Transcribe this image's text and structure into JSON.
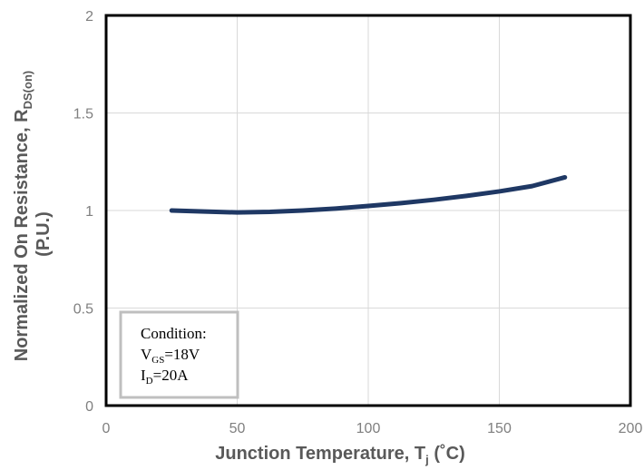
{
  "chart_data": {
    "type": "line",
    "xlabel": {
      "main": "Junction Temperature, T",
      "sub": "j",
      "unit": " (˚C)"
    },
    "ylabel": {
      "main": "Normalized On Resistance, R",
      "sub": "DS(on)",
      "line2": "(P.U.)"
    },
    "xlim": [
      0,
      200
    ],
    "ylim": [
      0,
      2
    ],
    "x_ticks": [
      0,
      50,
      100,
      150,
      200
    ],
    "y_ticks": [
      0,
      0.5,
      1,
      1.5,
      2
    ],
    "grid": true,
    "series": [
      {
        "color": "#1f3864",
        "x": [
          25,
          37.5,
          50,
          62.5,
          75,
          87.5,
          100,
          112.5,
          125,
          137.5,
          150,
          162.5,
          175
        ],
        "y": [
          1.0,
          0.995,
          0.99,
          0.993,
          1.0,
          1.01,
          1.023,
          1.038,
          1.055,
          1.075,
          1.098,
          1.125,
          1.17
        ]
      }
    ],
    "annotation": {
      "title": "Condition:",
      "lines": [
        {
          "main": "V",
          "sub": "GS",
          "rest": "=18V"
        },
        {
          "main": "I",
          "sub": "D",
          "rest": "=20A"
        }
      ]
    }
  }
}
